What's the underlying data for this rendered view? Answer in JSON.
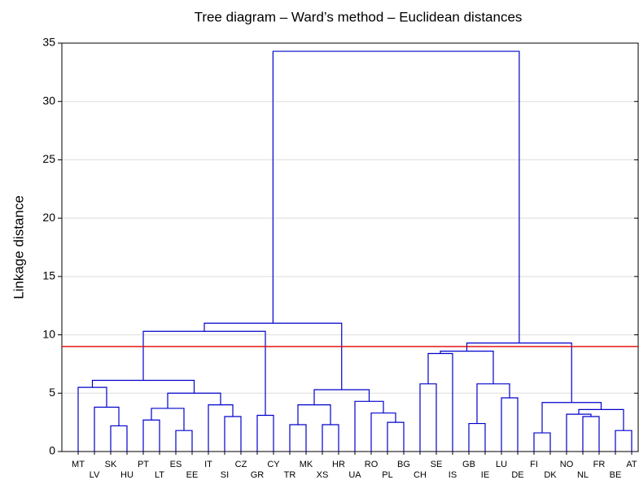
{
  "chart_data": {
    "type": "dendrogram",
    "title": "Tree diagram – Ward’s method – Euclidean distances",
    "ylabel": "Linkage distance",
    "ylim": [
      0,
      35
    ],
    "yticks": [
      0,
      5,
      10,
      15,
      20,
      25,
      30,
      35
    ],
    "grid": true,
    "color": "#0000cc",
    "cut_height": 9,
    "cut_color": "#e00000",
    "tree": {
      "height": 34.3,
      "children": [
        {
          "height": 11.0,
          "children": [
            {
              "height": 10.3,
              "children": [
                {
                  "height": 6.1,
                  "children": [
                    {
                      "height": 5.5,
                      "children": [
                        "MT",
                        {
                          "height": 3.8,
                          "children": [
                            "LV",
                            {
                              "height": 2.2,
                              "children": [
                                "SK",
                                "HU"
                              ]
                            }
                          ]
                        }
                      ]
                    },
                    {
                      "height": 5.0,
                      "children": [
                        {
                          "height": 3.7,
                          "children": [
                            {
                              "height": 2.7,
                              "children": [
                                "PT",
                                "LT"
                              ]
                            },
                            {
                              "height": 1.8,
                              "children": [
                                "ES",
                                "EE"
                              ]
                            }
                          ]
                        },
                        {
                          "height": 4.0,
                          "children": [
                            "IT",
                            {
                              "height": 3.0,
                              "children": [
                                "SI",
                                "CZ"
                              ]
                            }
                          ]
                        }
                      ]
                    }
                  ]
                },
                {
                  "height": 3.1,
                  "children": [
                    "GR",
                    "CY"
                  ]
                }
              ]
            },
            {
              "height": 5.3,
              "children": [
                {
                  "height": 4.0,
                  "children": [
                    {
                      "height": 2.3,
                      "children": [
                        "TR",
                        "MK"
                      ]
                    },
                    {
                      "height": 2.3,
                      "children": [
                        "XS",
                        "HR"
                      ]
                    }
                  ]
                },
                {
                  "height": 4.3,
                  "children": [
                    "UA",
                    {
                      "height": 3.3,
                      "children": [
                        "RO",
                        {
                          "height": 2.5,
                          "children": [
                            "PL",
                            "BG"
                          ]
                        }
                      ]
                    }
                  ]
                }
              ]
            }
          ]
        },
        {
          "height": 9.3,
          "children": [
            {
              "height": 8.6,
              "children": [
                {
                  "height": 8.4,
                  "children": [
                    {
                      "height": 5.8,
                      "children": [
                        "CH",
                        "SE"
                      ]
                    },
                    "IS"
                  ]
                },
                {
                  "height": 5.8,
                  "children": [
                    {
                      "height": 2.4,
                      "children": [
                        "GB",
                        "IE"
                      ]
                    },
                    {
                      "height": 4.6,
                      "children": [
                        "LU",
                        "DE"
                      ]
                    }
                  ]
                }
              ]
            },
            {
              "height": 4.2,
              "children": [
                {
                  "height": 1.6,
                  "children": [
                    "FI",
                    "DK"
                  ]
                },
                {
                  "height": 3.6,
                  "children": [
                    {
                      "height": 3.2,
                      "children": [
                        "NO",
                        {
                          "height": 3.0,
                          "children": [
                            "NL",
                            "FR"
                          ]
                        }
                      ]
                    },
                    {
                      "height": 1.8,
                      "children": [
                        "BE",
                        "AT"
                      ]
                    }
                  ]
                }
              ]
            }
          ]
        }
      ]
    }
  }
}
